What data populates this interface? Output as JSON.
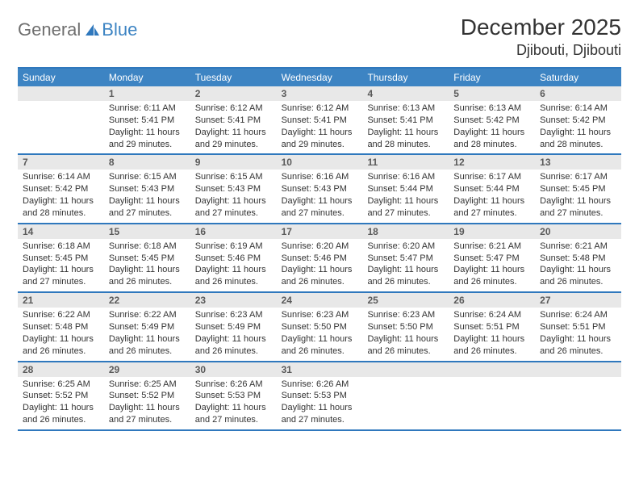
{
  "brand": {
    "general": "General",
    "blue": "Blue"
  },
  "title": "December 2025",
  "location": "Djibouti, Djibouti",
  "colors": {
    "header_bg": "#3d84c3",
    "header_border": "#2f78bd",
    "daynum_bg": "#e8e8e8",
    "text": "#333333",
    "logo_grey": "#6f6f6f",
    "logo_blue": "#3d84c3"
  },
  "typography": {
    "title_fontsize": 28,
    "location_fontsize": 18,
    "dow_fontsize": 12,
    "daynum_fontsize": 12,
    "body_fontsize": 11
  },
  "dow": [
    "Sunday",
    "Monday",
    "Tuesday",
    "Wednesday",
    "Thursday",
    "Friday",
    "Saturday"
  ],
  "weeks": [
    [
      {
        "n": "",
        "sr": "",
        "ss": "",
        "dl": ""
      },
      {
        "n": "1",
        "sr": "Sunrise: 6:11 AM",
        "ss": "Sunset: 5:41 PM",
        "dl": "Daylight: 11 hours and 29 minutes."
      },
      {
        "n": "2",
        "sr": "Sunrise: 6:12 AM",
        "ss": "Sunset: 5:41 PM",
        "dl": "Daylight: 11 hours and 29 minutes."
      },
      {
        "n": "3",
        "sr": "Sunrise: 6:12 AM",
        "ss": "Sunset: 5:41 PM",
        "dl": "Daylight: 11 hours and 29 minutes."
      },
      {
        "n": "4",
        "sr": "Sunrise: 6:13 AM",
        "ss": "Sunset: 5:41 PM",
        "dl": "Daylight: 11 hours and 28 minutes."
      },
      {
        "n": "5",
        "sr": "Sunrise: 6:13 AM",
        "ss": "Sunset: 5:42 PM",
        "dl": "Daylight: 11 hours and 28 minutes."
      },
      {
        "n": "6",
        "sr": "Sunrise: 6:14 AM",
        "ss": "Sunset: 5:42 PM",
        "dl": "Daylight: 11 hours and 28 minutes."
      }
    ],
    [
      {
        "n": "7",
        "sr": "Sunrise: 6:14 AM",
        "ss": "Sunset: 5:42 PM",
        "dl": "Daylight: 11 hours and 28 minutes."
      },
      {
        "n": "8",
        "sr": "Sunrise: 6:15 AM",
        "ss": "Sunset: 5:43 PM",
        "dl": "Daylight: 11 hours and 27 minutes."
      },
      {
        "n": "9",
        "sr": "Sunrise: 6:15 AM",
        "ss": "Sunset: 5:43 PM",
        "dl": "Daylight: 11 hours and 27 minutes."
      },
      {
        "n": "10",
        "sr": "Sunrise: 6:16 AM",
        "ss": "Sunset: 5:43 PM",
        "dl": "Daylight: 11 hours and 27 minutes."
      },
      {
        "n": "11",
        "sr": "Sunrise: 6:16 AM",
        "ss": "Sunset: 5:44 PM",
        "dl": "Daylight: 11 hours and 27 minutes."
      },
      {
        "n": "12",
        "sr": "Sunrise: 6:17 AM",
        "ss": "Sunset: 5:44 PM",
        "dl": "Daylight: 11 hours and 27 minutes."
      },
      {
        "n": "13",
        "sr": "Sunrise: 6:17 AM",
        "ss": "Sunset: 5:45 PM",
        "dl": "Daylight: 11 hours and 27 minutes."
      }
    ],
    [
      {
        "n": "14",
        "sr": "Sunrise: 6:18 AM",
        "ss": "Sunset: 5:45 PM",
        "dl": "Daylight: 11 hours and 27 minutes."
      },
      {
        "n": "15",
        "sr": "Sunrise: 6:18 AM",
        "ss": "Sunset: 5:45 PM",
        "dl": "Daylight: 11 hours and 26 minutes."
      },
      {
        "n": "16",
        "sr": "Sunrise: 6:19 AM",
        "ss": "Sunset: 5:46 PM",
        "dl": "Daylight: 11 hours and 26 minutes."
      },
      {
        "n": "17",
        "sr": "Sunrise: 6:20 AM",
        "ss": "Sunset: 5:46 PM",
        "dl": "Daylight: 11 hours and 26 minutes."
      },
      {
        "n": "18",
        "sr": "Sunrise: 6:20 AM",
        "ss": "Sunset: 5:47 PM",
        "dl": "Daylight: 11 hours and 26 minutes."
      },
      {
        "n": "19",
        "sr": "Sunrise: 6:21 AM",
        "ss": "Sunset: 5:47 PM",
        "dl": "Daylight: 11 hours and 26 minutes."
      },
      {
        "n": "20",
        "sr": "Sunrise: 6:21 AM",
        "ss": "Sunset: 5:48 PM",
        "dl": "Daylight: 11 hours and 26 minutes."
      }
    ],
    [
      {
        "n": "21",
        "sr": "Sunrise: 6:22 AM",
        "ss": "Sunset: 5:48 PM",
        "dl": "Daylight: 11 hours and 26 minutes."
      },
      {
        "n": "22",
        "sr": "Sunrise: 6:22 AM",
        "ss": "Sunset: 5:49 PM",
        "dl": "Daylight: 11 hours and 26 minutes."
      },
      {
        "n": "23",
        "sr": "Sunrise: 6:23 AM",
        "ss": "Sunset: 5:49 PM",
        "dl": "Daylight: 11 hours and 26 minutes."
      },
      {
        "n": "24",
        "sr": "Sunrise: 6:23 AM",
        "ss": "Sunset: 5:50 PM",
        "dl": "Daylight: 11 hours and 26 minutes."
      },
      {
        "n": "25",
        "sr": "Sunrise: 6:23 AM",
        "ss": "Sunset: 5:50 PM",
        "dl": "Daylight: 11 hours and 26 minutes."
      },
      {
        "n": "26",
        "sr": "Sunrise: 6:24 AM",
        "ss": "Sunset: 5:51 PM",
        "dl": "Daylight: 11 hours and 26 minutes."
      },
      {
        "n": "27",
        "sr": "Sunrise: 6:24 AM",
        "ss": "Sunset: 5:51 PM",
        "dl": "Daylight: 11 hours and 26 minutes."
      }
    ],
    [
      {
        "n": "28",
        "sr": "Sunrise: 6:25 AM",
        "ss": "Sunset: 5:52 PM",
        "dl": "Daylight: 11 hours and 26 minutes."
      },
      {
        "n": "29",
        "sr": "Sunrise: 6:25 AM",
        "ss": "Sunset: 5:52 PM",
        "dl": "Daylight: 11 hours and 27 minutes."
      },
      {
        "n": "30",
        "sr": "Sunrise: 6:26 AM",
        "ss": "Sunset: 5:53 PM",
        "dl": "Daylight: 11 hours and 27 minutes."
      },
      {
        "n": "31",
        "sr": "Sunrise: 6:26 AM",
        "ss": "Sunset: 5:53 PM",
        "dl": "Daylight: 11 hours and 27 minutes."
      },
      {
        "n": "",
        "sr": "",
        "ss": "",
        "dl": ""
      },
      {
        "n": "",
        "sr": "",
        "ss": "",
        "dl": ""
      },
      {
        "n": "",
        "sr": "",
        "ss": "",
        "dl": ""
      }
    ]
  ]
}
